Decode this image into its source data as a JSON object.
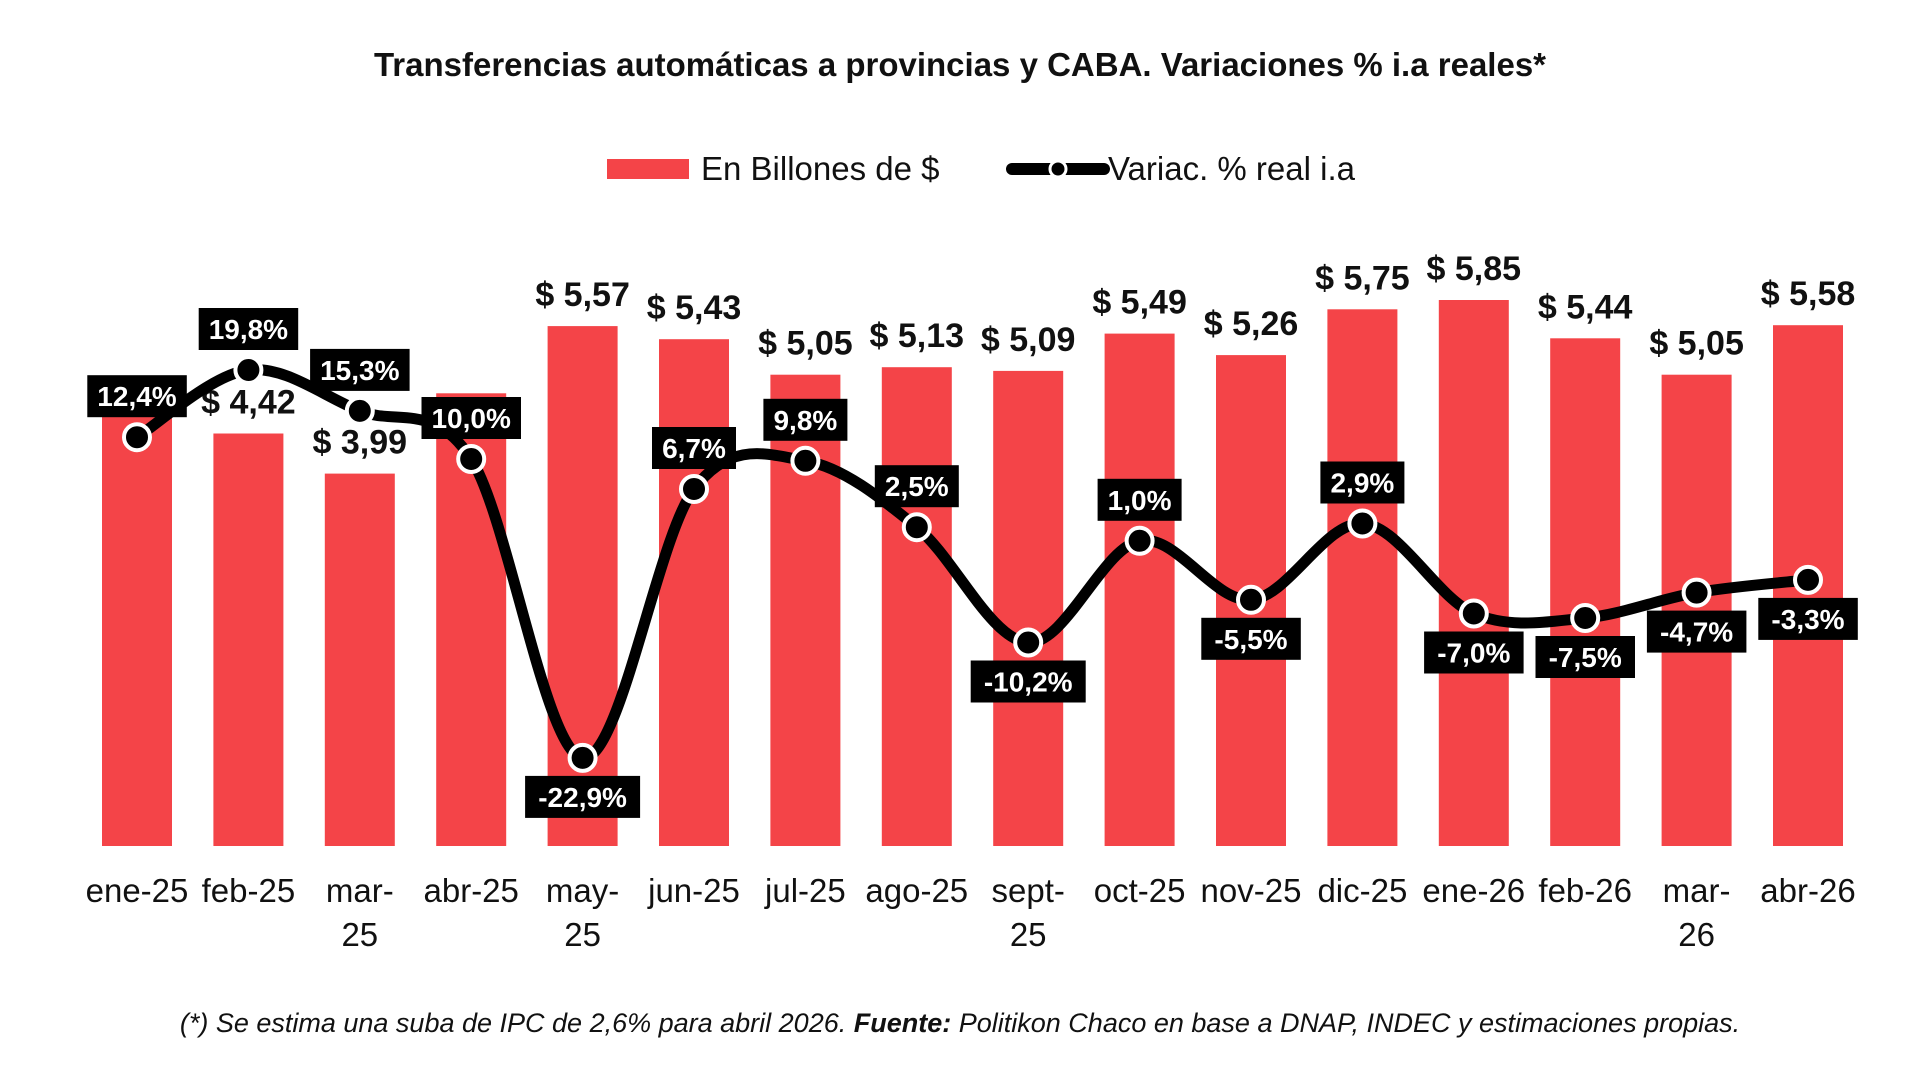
{
  "colors": {
    "bar": "#f44448",
    "line": "#000000",
    "marker_fill": "#ffffff",
    "label_box": "#000000",
    "label_text": "#ffffff"
  },
  "chart_data": {
    "type": "bar",
    "title": "Transferencias automáticas a provincias y CABA. Variaciones % i.a reales*",
    "legend": {
      "placement": "top",
      "items": [
        {
          "name": "En Billones de $",
          "kind": "bar"
        },
        {
          "name": "Variac. % real i.a",
          "kind": "line"
        }
      ]
    },
    "categories": [
      [
        "ene-25"
      ],
      [
        "feb-25"
      ],
      [
        "mar-",
        "25"
      ],
      [
        "abr-25"
      ],
      [
        "may-",
        "25"
      ],
      [
        "jun-25"
      ],
      [
        "jul-25"
      ],
      [
        "ago-25"
      ],
      [
        "sept-",
        "25"
      ],
      [
        "oct-25"
      ],
      [
        "nov-25"
      ],
      [
        "dic-25"
      ],
      [
        "ene-26"
      ],
      [
        "feb-26"
      ],
      [
        "mar-",
        "26"
      ],
      [
        "abr-26"
      ]
    ],
    "series": [
      {
        "name": "En Billones de $",
        "type": "bar",
        "values": [
          4.9,
          4.42,
          3.99,
          4.85,
          5.57,
          5.43,
          5.05,
          5.13,
          5.09,
          5.49,
          5.26,
          5.75,
          5.85,
          5.44,
          5.05,
          5.58
        ],
        "labels": [
          "",
          "$ 4,42",
          "$ 3,99",
          "",
          "$ 5,57",
          "$ 5,43",
          "$ 5,05",
          "$ 5,13",
          "$ 5,09",
          "$ 5,49",
          "$ 5,26",
          "$ 5,75",
          "$ 5,85",
          "$ 5,44",
          "$ 5,05",
          "$ 5,58"
        ]
      },
      {
        "name": "Variac. % real i.a",
        "type": "line",
        "values": [
          12.4,
          19.8,
          15.3,
          10.0,
          -22.9,
          6.7,
          9.8,
          2.5,
          -10.2,
          1.0,
          -5.5,
          2.9,
          -7.0,
          -7.5,
          -4.7,
          -3.3
        ],
        "labels": [
          "12,4%",
          "19,8%",
          "15,3%",
          "10,0%",
          "-22,9%",
          "6,7%",
          "9,8%",
          "2,5%",
          "-10,2%",
          "1,0%",
          "-5,5%",
          "2,9%",
          "-7,0%",
          "-7,5%",
          "-4,7%",
          "-3,3%"
        ],
        "label_positions": [
          "above",
          "above",
          "above",
          "above",
          "below",
          "above",
          "above",
          "above",
          "below",
          "above",
          "below",
          "above",
          "below",
          "below",
          "below",
          "below"
        ]
      }
    ],
    "bar_axis_range": [
      0,
      6.0
    ],
    "line_axis_range": [
      -25,
      22
    ],
    "grid": false
  },
  "footnote": {
    "part1": "(*) Se estima una suba de IPC de 2,6% para abril 2026. ",
    "bold": "Fuente:",
    "part2": " Politikon Chaco en base a DNAP, INDEC y estimaciones propias."
  }
}
